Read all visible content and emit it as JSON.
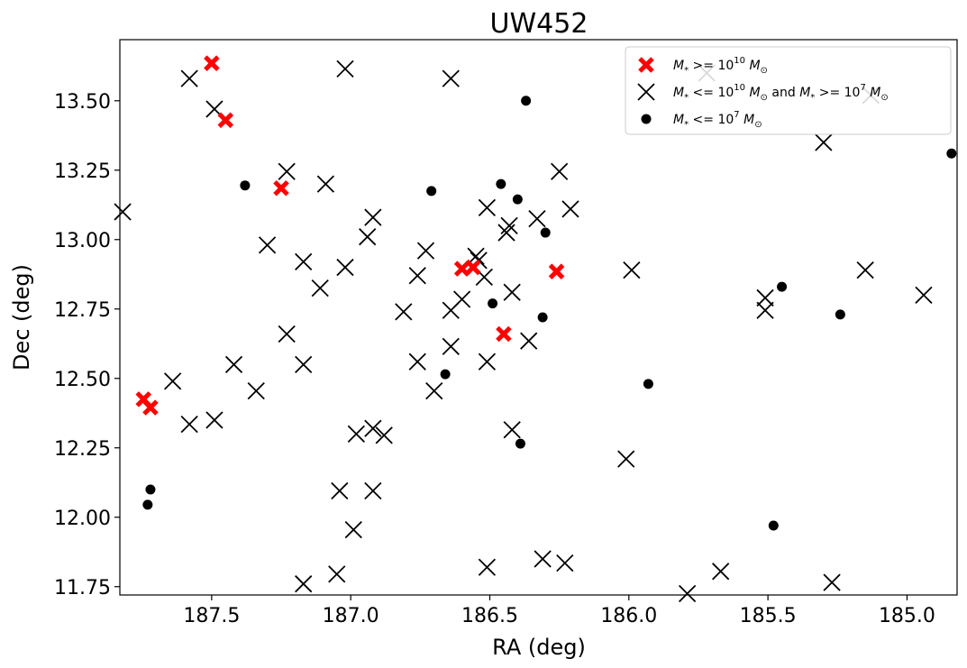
{
  "chart_data": {
    "type": "scatter",
    "title": "UW452",
    "xlabel": "RA (deg)",
    "ylabel": "Dec (deg)",
    "x_inverted": true,
    "xlim": [
      187.83,
      184.82
    ],
    "ylim": [
      11.72,
      13.72
    ],
    "xticks": [
      187.5,
      187.0,
      186.5,
      186.0,
      185.5,
      185.0
    ],
    "xtick_labels": [
      "187.5",
      "187.0",
      "186.5",
      "186.0",
      "185.5",
      "185.0"
    ],
    "yticks": [
      11.75,
      12.0,
      12.25,
      12.5,
      12.75,
      13.0,
      13.25,
      13.5
    ],
    "ytick_labels": [
      "11.75",
      "12.00",
      "12.25",
      "12.50",
      "12.75",
      "13.00",
      "13.25",
      "13.50"
    ],
    "grid": false,
    "legend_position": "top-right",
    "series": [
      {
        "name": "$M_*>=10^{10}\\,M_\\odot$",
        "legend": {
          "base": "M",
          "sub": "*",
          "rel": " >= 10",
          "sup": "10",
          "tail": " M",
          "tailsub": "⊙"
        },
        "marker": "x-thick",
        "color": "#ff0000",
        "points": [
          [
            187.5,
            13.635
          ],
          [
            187.45,
            13.43
          ],
          [
            187.25,
            13.185
          ],
          [
            186.6,
            12.895
          ],
          [
            186.56,
            12.9
          ],
          [
            186.26,
            12.885
          ],
          [
            186.45,
            12.66
          ],
          [
            187.745,
            12.425
          ],
          [
            187.72,
            12.395
          ]
        ]
      },
      {
        "name": "$M_*<=10^{10}\\,M_\\odot$ and $M_*>=10^7\\,M_\\odot$",
        "legend": {
          "base": "M",
          "sub": "*",
          "rel": " <= 10",
          "sup": "10",
          "tail": " M",
          "tailsub": "⊙",
          "extra": " and M",
          "extrasub": "*",
          "extrarel": " >= 10",
          "extrasup": "7",
          "extratail": " M",
          "extratailsub": "⊙"
        },
        "marker": "x",
        "color": "#000000",
        "points": [
          [
            187.82,
            13.1
          ],
          [
            187.58,
            13.58
          ],
          [
            187.49,
            13.47
          ],
          [
            187.02,
            13.615
          ],
          [
            186.64,
            13.58
          ],
          [
            185.72,
            13.6
          ],
          [
            185.13,
            13.52
          ],
          [
            187.23,
            13.245
          ],
          [
            187.09,
            13.2
          ],
          [
            186.25,
            13.245
          ],
          [
            185.3,
            13.35
          ],
          [
            186.92,
            13.08
          ],
          [
            186.51,
            13.115
          ],
          [
            186.21,
            13.11
          ],
          [
            186.33,
            13.075
          ],
          [
            186.43,
            13.05
          ],
          [
            186.44,
            13.025
          ],
          [
            186.94,
            13.01
          ],
          [
            187.3,
            12.98
          ],
          [
            186.73,
            12.96
          ],
          [
            186.55,
            12.94
          ],
          [
            186.54,
            12.925
          ],
          [
            187.17,
            12.92
          ],
          [
            187.02,
            12.9
          ],
          [
            186.76,
            12.87
          ],
          [
            186.52,
            12.865
          ],
          [
            185.99,
            12.89
          ],
          [
            185.15,
            12.89
          ],
          [
            184.94,
            12.8
          ],
          [
            187.11,
            12.825
          ],
          [
            186.42,
            12.81
          ],
          [
            186.6,
            12.785
          ],
          [
            185.51,
            12.79
          ],
          [
            185.51,
            12.745
          ],
          [
            186.81,
            12.74
          ],
          [
            186.64,
            12.745
          ],
          [
            187.23,
            12.66
          ],
          [
            186.64,
            12.615
          ],
          [
            186.36,
            12.635
          ],
          [
            187.42,
            12.55
          ],
          [
            187.17,
            12.55
          ],
          [
            186.76,
            12.56
          ],
          [
            186.51,
            12.56
          ],
          [
            187.64,
            12.49
          ],
          [
            187.34,
            12.455
          ],
          [
            186.7,
            12.455
          ],
          [
            187.58,
            12.335
          ],
          [
            187.49,
            12.35
          ],
          [
            186.92,
            12.32
          ],
          [
            186.98,
            12.3
          ],
          [
            186.88,
            12.295
          ],
          [
            186.42,
            12.315
          ],
          [
            186.01,
            12.21
          ],
          [
            187.04,
            12.095
          ],
          [
            186.92,
            12.095
          ],
          [
            186.99,
            11.955
          ],
          [
            187.05,
            11.795
          ],
          [
            187.17,
            11.76
          ],
          [
            186.51,
            11.82
          ],
          [
            186.31,
            11.85
          ],
          [
            186.23,
            11.835
          ],
          [
            185.79,
            11.725
          ],
          [
            185.67,
            11.805
          ],
          [
            185.27,
            11.765
          ]
        ]
      },
      {
        "name": "$M_*<=10^7\\,M_\\odot$",
        "legend": {
          "base": "M",
          "sub": "*",
          "rel": " <= 10",
          "sup": "7",
          "tail": " M",
          "tailsub": "⊙"
        },
        "marker": "circle",
        "color": "#000000",
        "points": [
          [
            186.37,
            13.5
          ],
          [
            187.38,
            13.195
          ],
          [
            186.46,
            13.2
          ],
          [
            186.71,
            13.175
          ],
          [
            186.4,
            13.145
          ],
          [
            186.3,
            13.025
          ],
          [
            184.84,
            13.31
          ],
          [
            185.45,
            12.83
          ],
          [
            186.49,
            12.77
          ],
          [
            186.31,
            12.72
          ],
          [
            185.24,
            12.73
          ],
          [
            186.66,
            12.515
          ],
          [
            185.93,
            12.48
          ],
          [
            186.39,
            12.265
          ],
          [
            187.72,
            12.1
          ],
          [
            187.73,
            12.045
          ],
          [
            185.48,
            11.97
          ]
        ]
      }
    ]
  }
}
